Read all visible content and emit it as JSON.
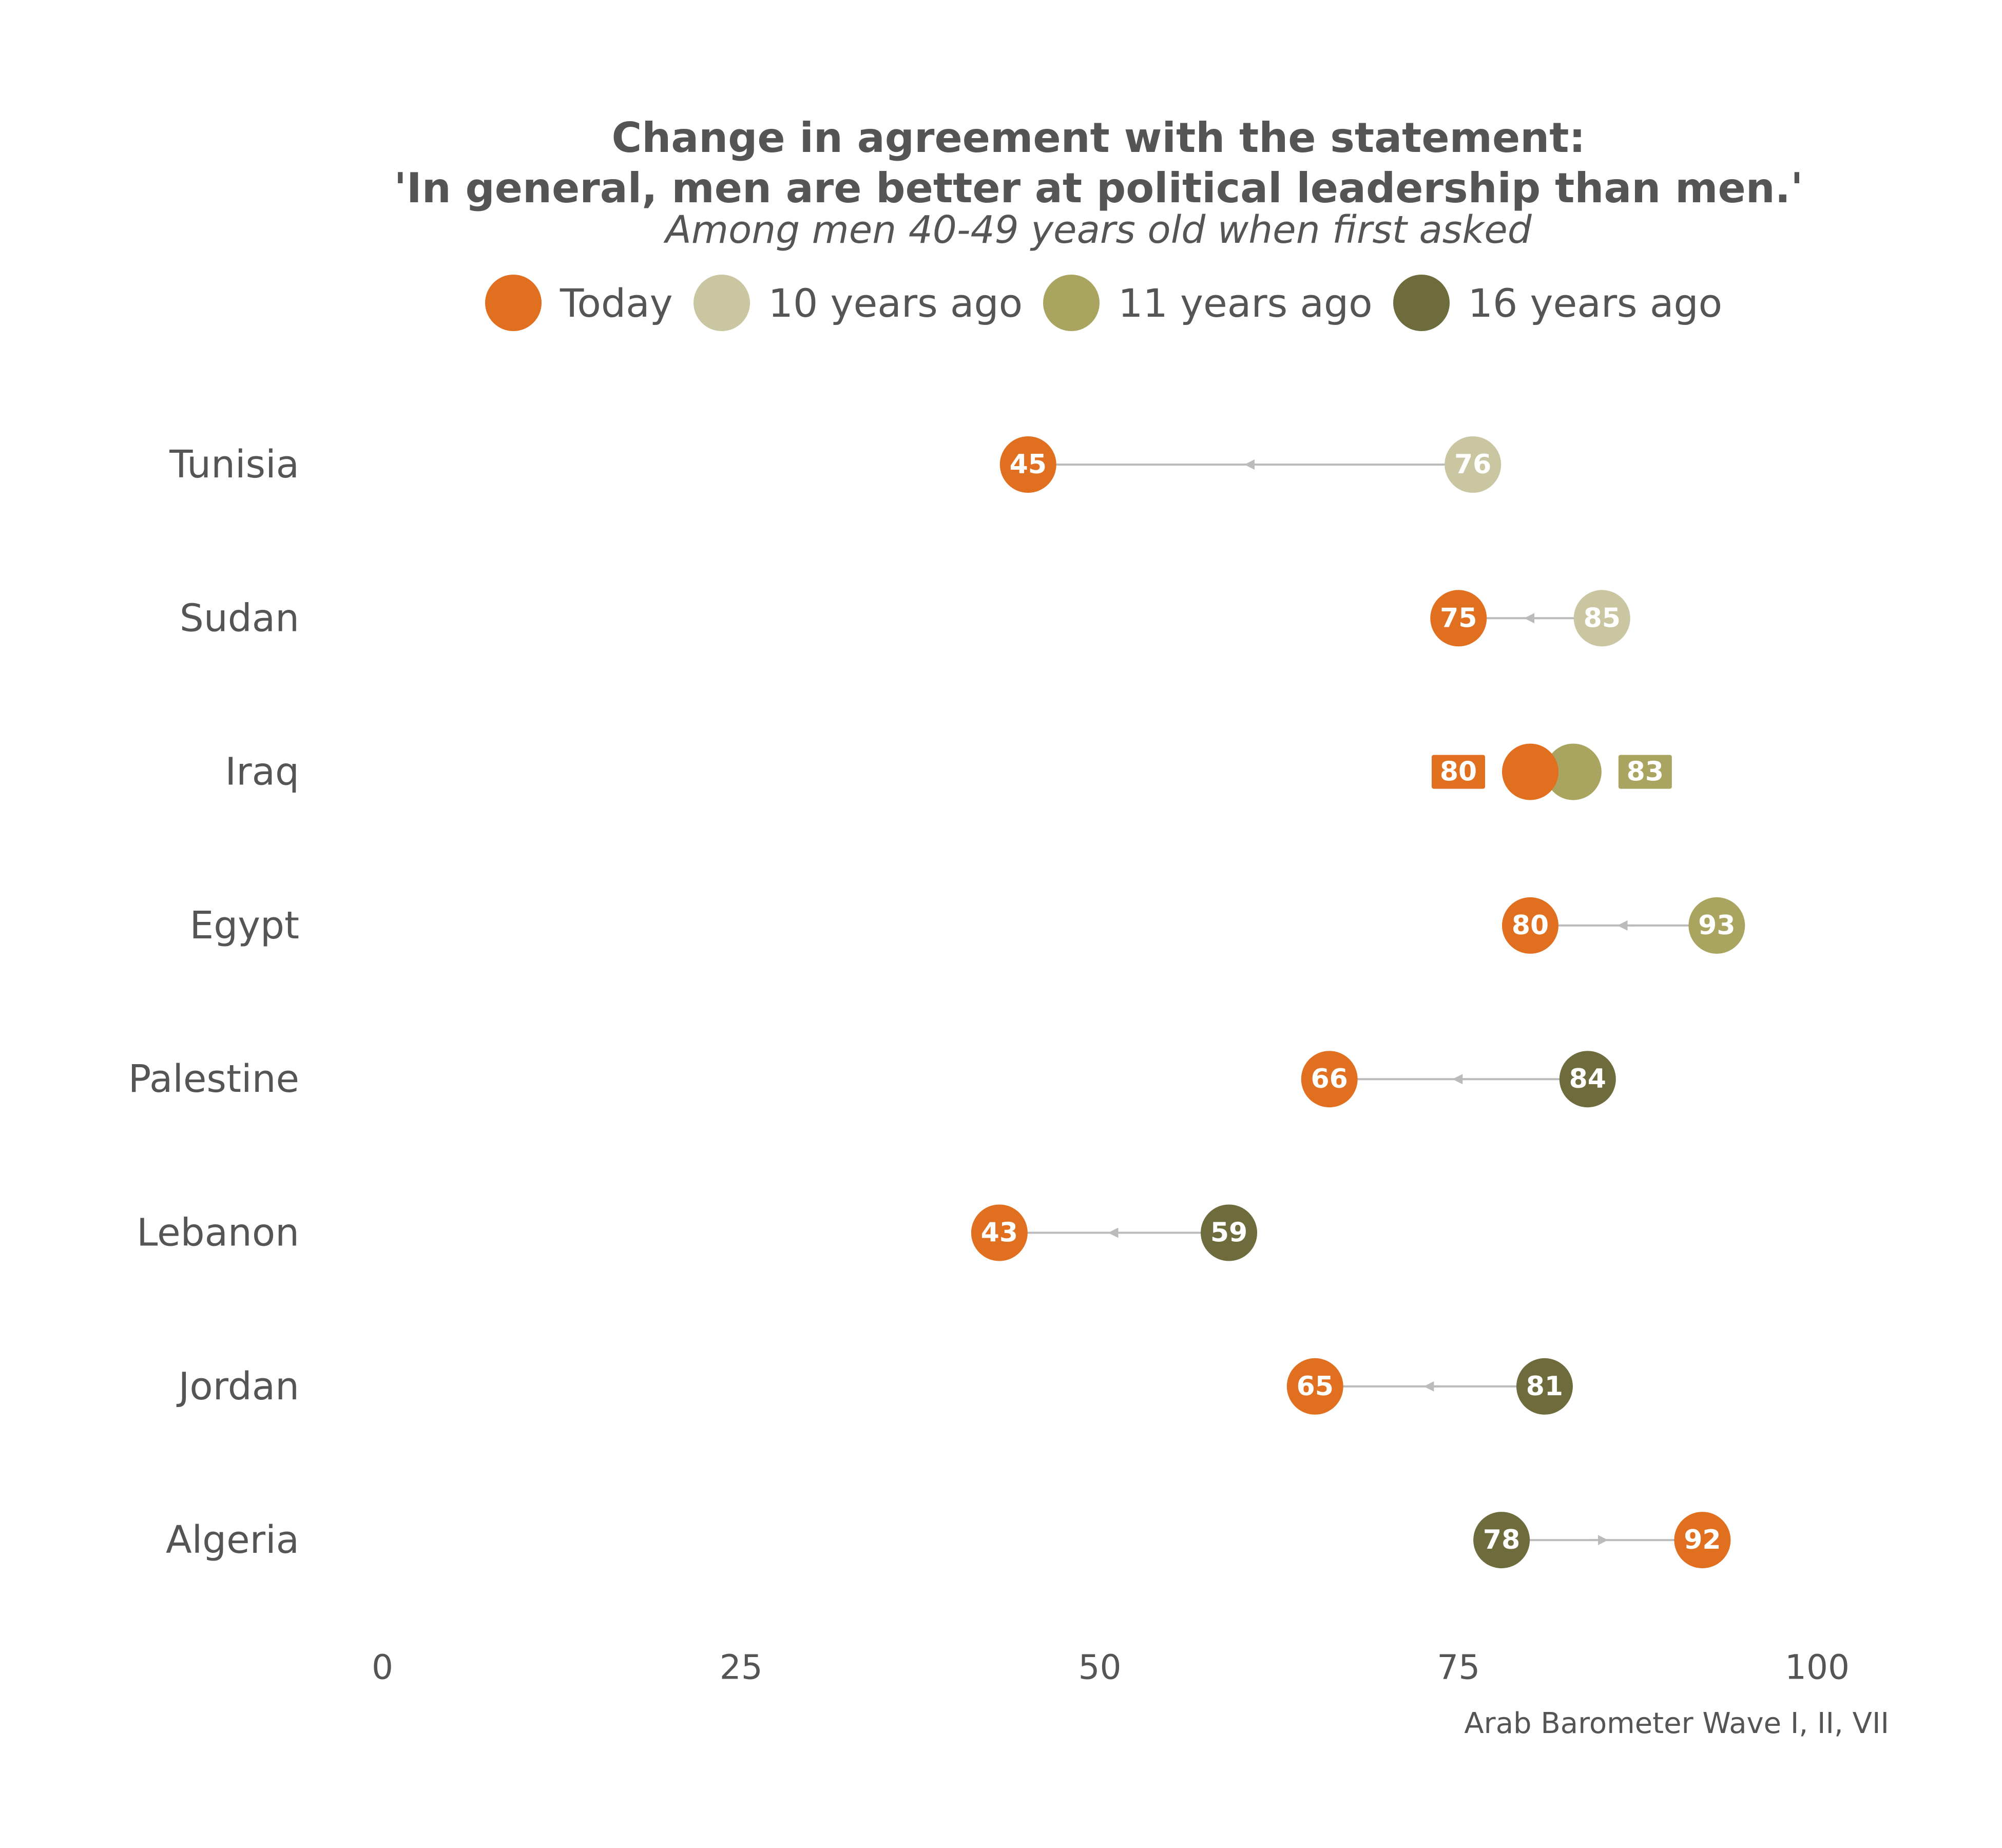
{
  "chart_data": {
    "type": "dumbbell",
    "title": "Change in agreement with the statement:",
    "title_line2": "'In general, men are better at political leadership than men.'",
    "subtitle": "Among men 40-49 years old when first asked",
    "legend": [
      {
        "name": "Today",
        "color": "#E07020"
      },
      {
        "name": "10 years ago",
        "color": "#C9C6A1"
      },
      {
        "name": "11 years ago",
        "color": "#A9A560"
      },
      {
        "name": "16 years ago",
        "color": "#6E6B3C"
      }
    ],
    "xlim": [
      0,
      100
    ],
    "x_ticks": [
      "0",
      "25",
      "50",
      "75",
      "100"
    ],
    "grid": false,
    "source": "Arab Barometer Wave I, II, VII",
    "rows": [
      {
        "country": "Tunisia",
        "today": 45,
        "past": 76,
        "past_series": "10 years ago"
      },
      {
        "country": "Sudan",
        "today": 75,
        "past": 85,
        "past_series": "10 years ago"
      },
      {
        "country": "Iraq",
        "today": 80,
        "past": 83,
        "past_series": "11 years ago"
      },
      {
        "country": "Egypt",
        "today": 80,
        "past": 93,
        "past_series": "11 years ago"
      },
      {
        "country": "Palestine",
        "today": 66,
        "past": 84,
        "past_series": "16 years ago"
      },
      {
        "country": "Lebanon",
        "today": 43,
        "past": 59,
        "past_series": "16 years ago"
      },
      {
        "country": "Jordan",
        "today": 65,
        "past": 81,
        "past_series": "16 years ago"
      },
      {
        "country": "Algeria",
        "today": 92,
        "past": 78,
        "past_series": "16 years ago"
      }
    ]
  }
}
